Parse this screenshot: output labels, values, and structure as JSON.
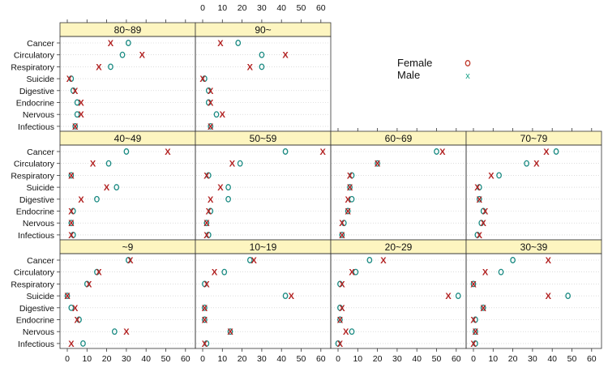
{
  "chart_data": {
    "type": "scatter",
    "x_ticks": [
      0,
      10,
      20,
      30,
      40,
      50,
      60
    ],
    "xlim": [
      -3,
      66
    ],
    "categories": [
      "Cancer",
      "Circulatory",
      "Respiratory",
      "Suicide",
      "Digestive",
      "Endocrine",
      "Nervous",
      "Infectious"
    ],
    "legend": {
      "position": "top-right",
      "entries": [
        {
          "name": "Female",
          "marker": "o",
          "color": "#c0392b"
        },
        {
          "name": "Male",
          "marker": "x",
          "color": "#16a085"
        }
      ]
    },
    "marker_colors": {
      "circle": "#1a8a82",
      "cross": "#b22222"
    },
    "strip_color": "#fdf5c0",
    "panels": [
      {
        "label": "80~89",
        "row": 0,
        "col": 0,
        "female_o": [
          31,
          28,
          22,
          2,
          3,
          5,
          5,
          4
        ],
        "male_x": [
          22,
          38,
          16,
          1,
          4,
          7,
          7,
          4
        ]
      },
      {
        "label": "90~",
        "row": 0,
        "col": 1,
        "female_o": [
          18,
          30,
          30,
          1,
          3,
          3,
          7,
          4
        ],
        "male_x": [
          9,
          42,
          24,
          0,
          4,
          4,
          10,
          4
        ]
      },
      {
        "label": "40~49",
        "row": 1,
        "col": 0,
        "female_o": [
          30,
          21,
          2,
          25,
          15,
          3,
          2,
          3
        ],
        "male_x": [
          51,
          13,
          2,
          20,
          7,
          2,
          2,
          2
        ]
      },
      {
        "label": "50~59",
        "row": 1,
        "col": 1,
        "female_o": [
          42,
          19,
          3,
          13,
          13,
          4,
          2,
          3
        ],
        "male_x": [
          61,
          15,
          2,
          9,
          4,
          3,
          2,
          2
        ]
      },
      {
        "label": "60~69",
        "row": 1,
        "col": 2,
        "female_o": [
          50,
          20,
          7,
          6,
          7,
          5,
          3,
          2
        ],
        "male_x": [
          53,
          20,
          6,
          6,
          5,
          5,
          2,
          2
        ]
      },
      {
        "label": "70~79",
        "row": 1,
        "col": 3,
        "female_o": [
          42,
          27,
          13,
          3,
          3,
          5,
          4,
          2
        ],
        "male_x": [
          37,
          32,
          9,
          2,
          3,
          6,
          5,
          3
        ]
      },
      {
        "label": "~9",
        "row": 2,
        "col": 0,
        "female_o": [
          31,
          15,
          10,
          0,
          2,
          6,
          24,
          8
        ],
        "male_x": [
          32,
          16,
          11,
          0,
          4,
          5,
          30,
          2
        ]
      },
      {
        "label": "10~19",
        "row": 2,
        "col": 1,
        "female_o": [
          24,
          11,
          1,
          42,
          1,
          1,
          14,
          2
        ],
        "male_x": [
          26,
          6,
          2,
          45,
          1,
          1,
          14,
          1
        ]
      },
      {
        "label": "20~29",
        "row": 2,
        "col": 2,
        "female_o": [
          16,
          9,
          1,
          61,
          1,
          1,
          7,
          0
        ],
        "male_x": [
          23,
          7,
          2,
          56,
          2,
          1,
          4,
          1
        ]
      },
      {
        "label": "30~39",
        "row": 2,
        "col": 3,
        "female_o": [
          20,
          14,
          0,
          48,
          5,
          1,
          1,
          1
        ],
        "male_x": [
          38,
          6,
          0,
          38,
          5,
          0,
          1,
          0
        ]
      }
    ]
  }
}
